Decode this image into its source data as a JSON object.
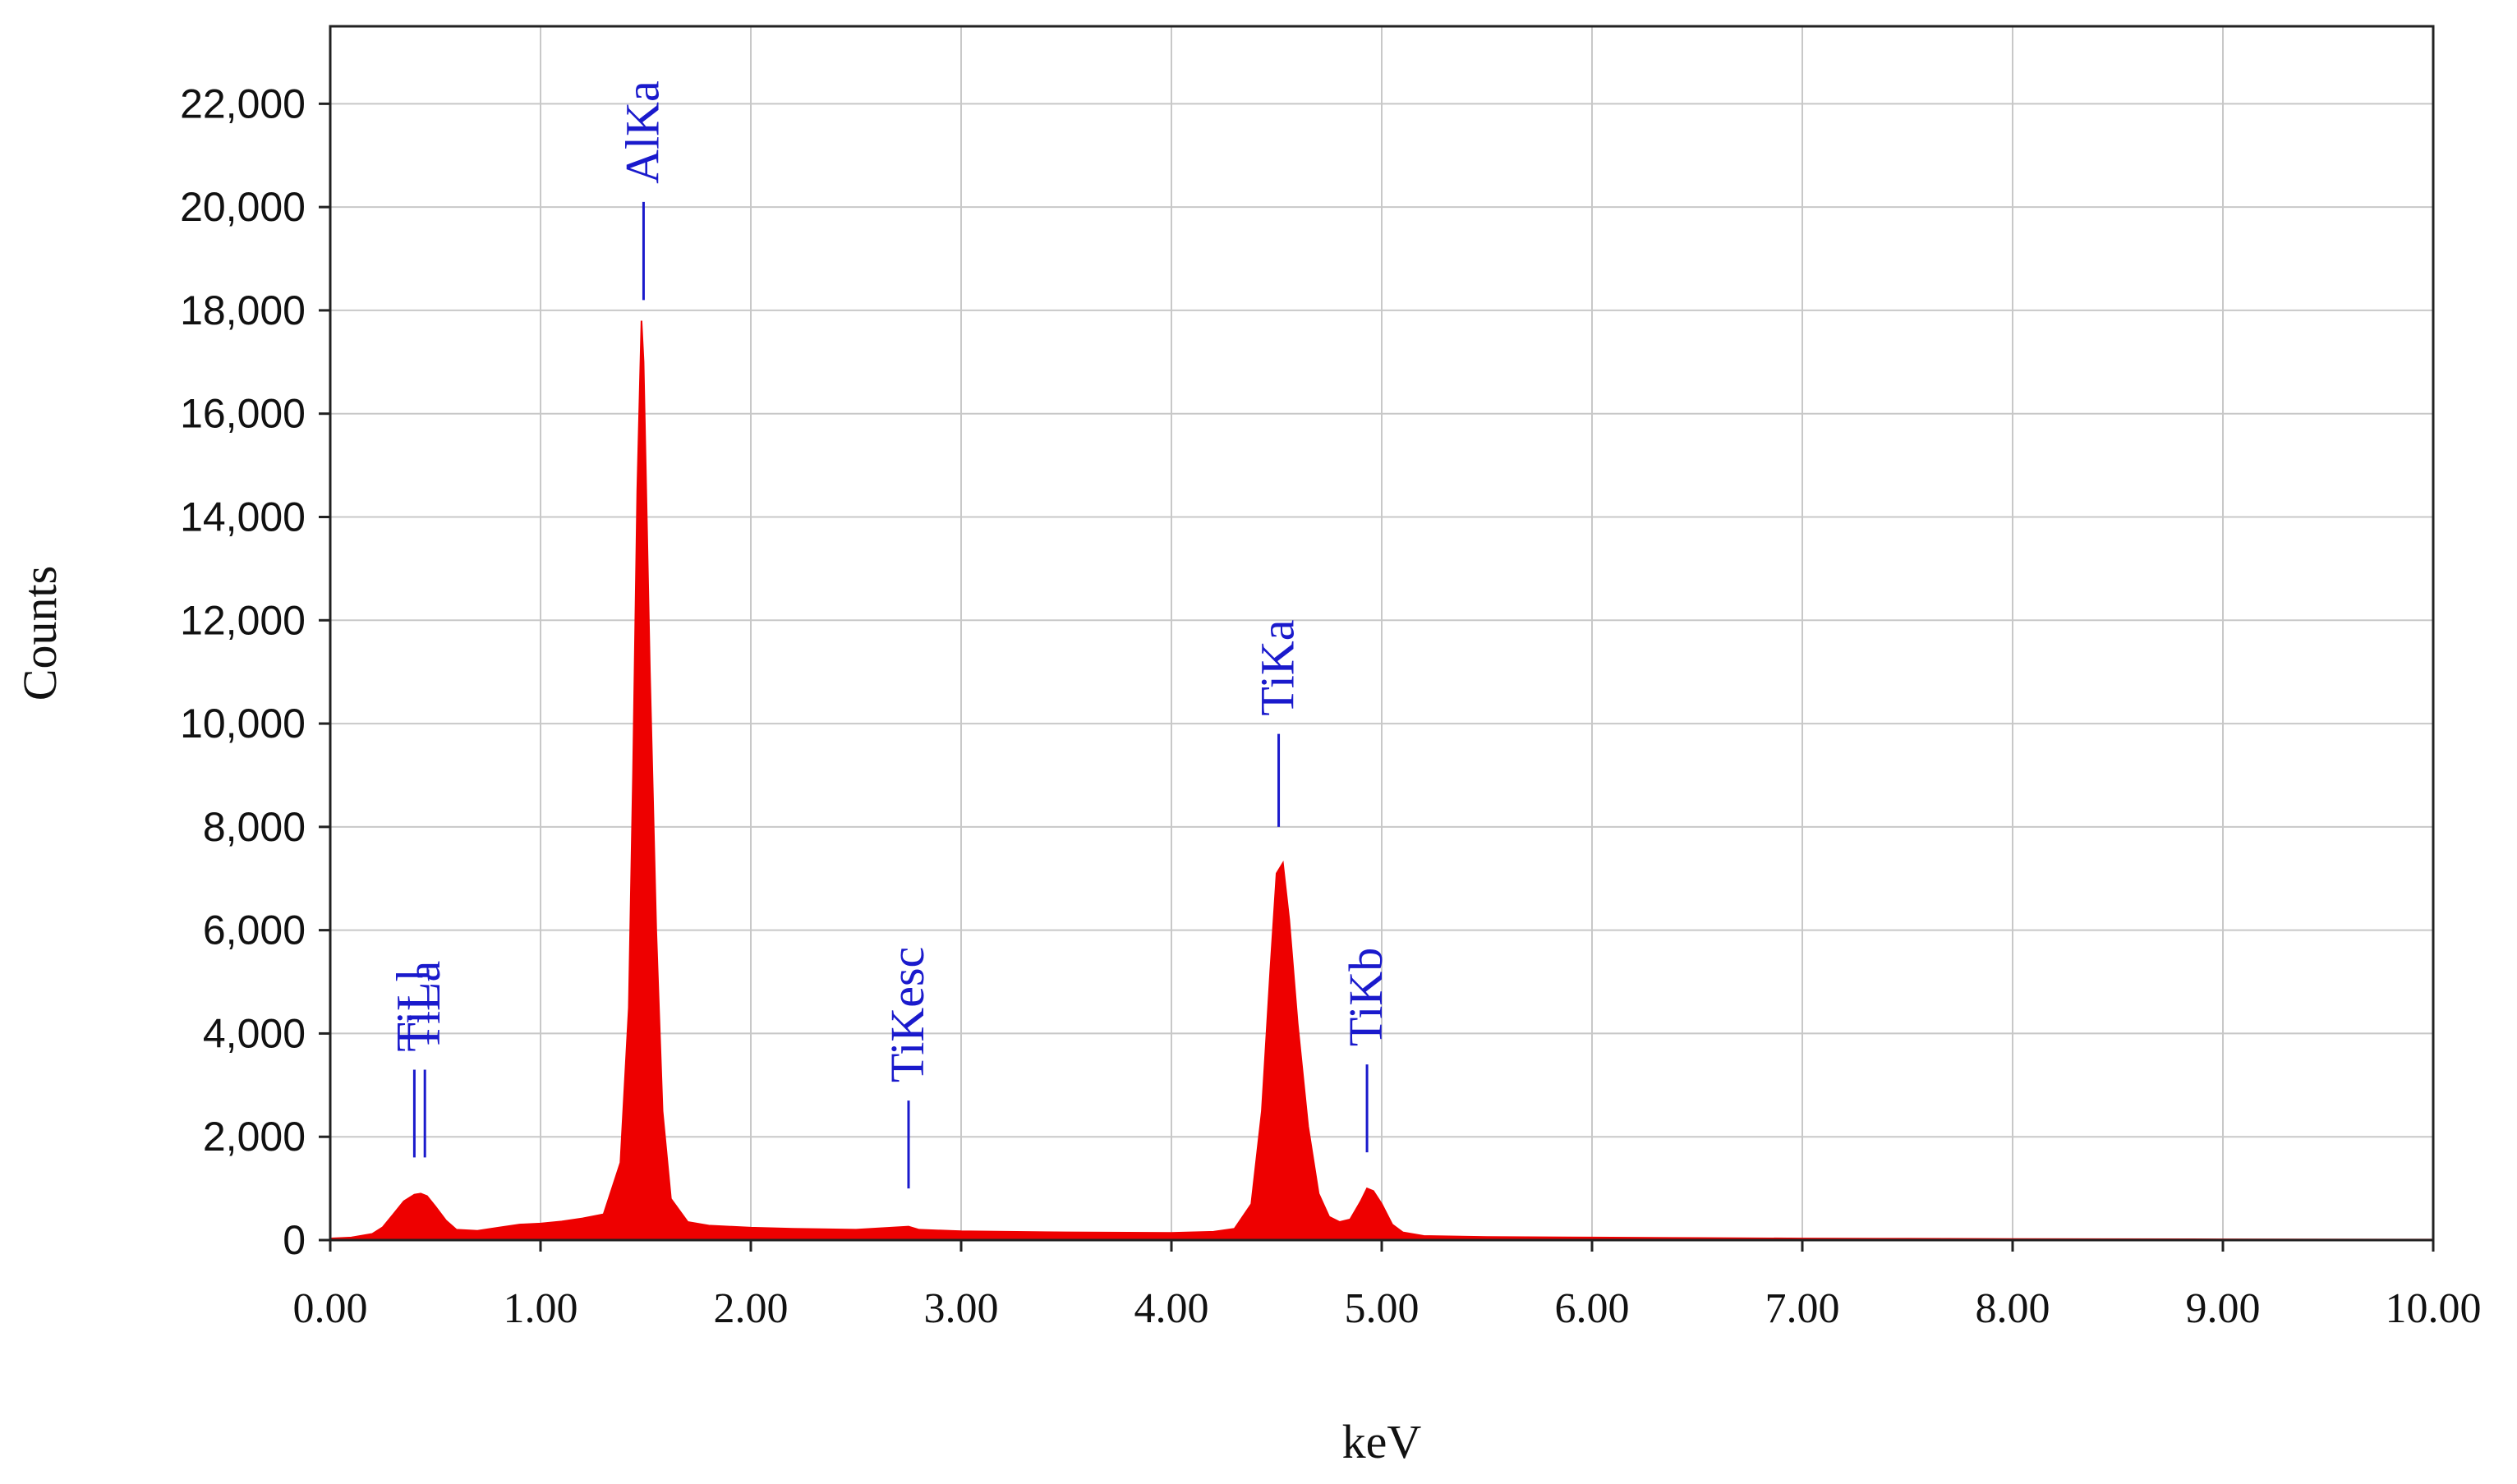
{
  "chart_data": {
    "type": "area",
    "title": "",
    "xlabel": "keV",
    "ylabel": "Counts",
    "xlim": [
      0,
      10
    ],
    "ylim": [
      0,
      23500
    ],
    "x_ticks": [
      "0.00",
      "1.00",
      "2.00",
      "3.00",
      "4.00",
      "5.00",
      "6.00",
      "7.00",
      "8.00",
      "9.00",
      "10.00"
    ],
    "x_tick_values": [
      0,
      1,
      2,
      3,
      4,
      5,
      6,
      7,
      8,
      9,
      10
    ],
    "y_ticks": [
      "0",
      "2,000",
      "4,000",
      "6,000",
      "8,000",
      "10,000",
      "12,000",
      "14,000",
      "16,000",
      "18,000",
      "20,000",
      "22,000"
    ],
    "y_tick_values": [
      0,
      2000,
      4000,
      6000,
      8000,
      10000,
      12000,
      14000,
      16000,
      18000,
      20000,
      22000
    ],
    "grid": true,
    "series": [
      {
        "color": "#ee0000",
        "x": [
          0.0,
          0.1,
          0.2,
          0.25,
          0.3,
          0.35,
          0.4,
          0.43,
          0.46,
          0.5,
          0.55,
          0.6,
          0.7,
          0.8,
          0.9,
          1.0,
          1.1,
          1.2,
          1.3,
          1.38,
          1.42,
          1.44,
          1.46,
          1.48,
          1.49,
          1.5,
          1.52,
          1.55,
          1.58,
          1.62,
          1.7,
          1.8,
          2.0,
          2.2,
          2.5,
          2.75,
          2.8,
          3.0,
          3.5,
          4.0,
          4.2,
          4.3,
          4.38,
          4.43,
          4.47,
          4.5,
          4.53,
          4.56,
          4.6,
          4.65,
          4.7,
          4.75,
          4.8,
          4.85,
          4.9,
          4.93,
          4.96,
          5.0,
          5.05,
          5.1,
          5.2,
          5.5,
          6.0,
          6.5,
          7.0,
          7.5,
          8.0,
          9.0,
          10.0
        ],
        "y": [
          30,
          50,
          120,
          250,
          500,
          750,
          880,
          900,
          850,
          650,
          380,
          200,
          180,
          240,
          300,
          320,
          360,
          420,
          500,
          1500,
          4500,
          9000,
          14500,
          17800,
          17000,
          15000,
          11000,
          6000,
          2500,
          800,
          350,
          280,
          240,
          220,
          200,
          260,
          200,
          170,
          150,
          140,
          160,
          220,
          700,
          2500,
          5200,
          7100,
          7300,
          6200,
          4200,
          2200,
          900,
          450,
          350,
          400,
          750,
          1000,
          950,
          700,
          300,
          150,
          80,
          60,
          50,
          40,
          30,
          25,
          20,
          15,
          10
        ]
      }
    ],
    "peak_labels": [
      {
        "text": "TiLl",
        "energy": 0.4,
        "marker_low": 1600,
        "marker_high": 3300
      },
      {
        "text": "TiLa",
        "energy": 0.45,
        "marker_low": 1600,
        "marker_high": 3300
      },
      {
        "text": "AlKa",
        "energy": 1.49,
        "marker_low": 18200,
        "marker_high": 20100
      },
      {
        "text": "TiKesc",
        "energy": 2.75,
        "marker_low": 1000,
        "marker_high": 2700
      },
      {
        "text": "TiKa",
        "energy": 4.51,
        "marker_low": 8000,
        "marker_high": 9800
      },
      {
        "text": "TiKb",
        "energy": 4.93,
        "marker_low": 1700,
        "marker_high": 3400
      }
    ],
    "colors": {
      "spectrum": "#ee0000",
      "labels": "#1a1acc",
      "grid": "#c8c8c8",
      "frame": "#222222"
    }
  }
}
